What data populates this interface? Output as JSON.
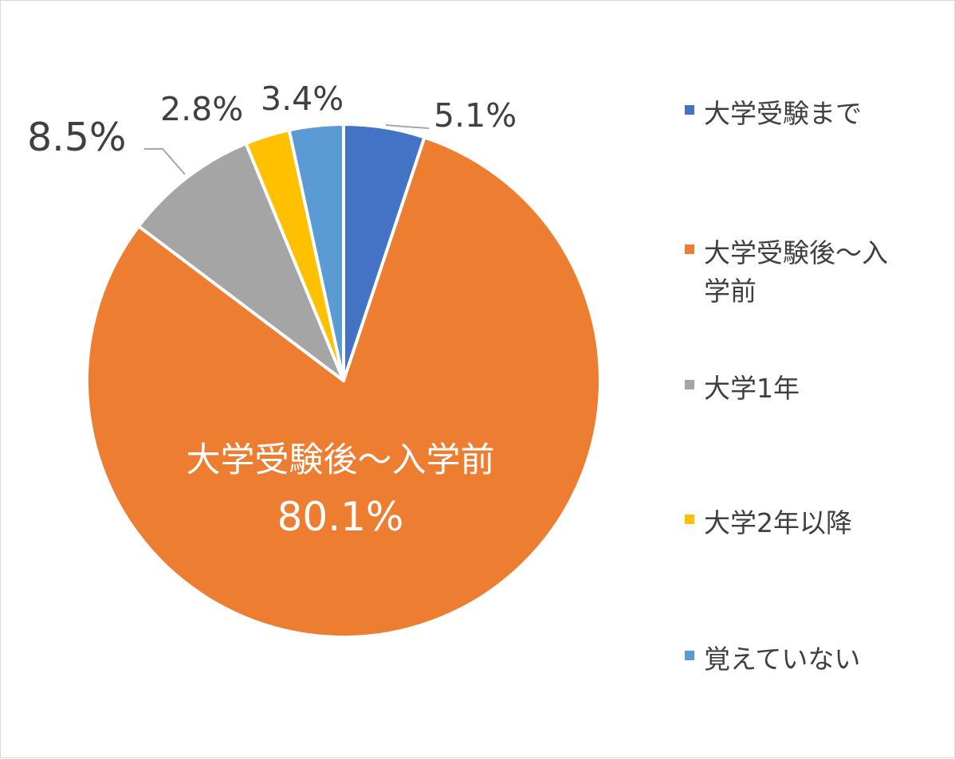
{
  "chart_data": {
    "type": "pie",
    "series": [
      {
        "slices": [
          {
            "label": "大学受験まで",
            "value": 5.1,
            "value_label": "5.1%",
            "color": "#4472C4"
          },
          {
            "label": "大学受験後～入学前",
            "value": 80.1,
            "value_label": "80.1%",
            "color": "#ED7D31"
          },
          {
            "label": "大学1年",
            "value": 8.5,
            "value_label": "8.5%",
            "color": "#A5A5A5"
          },
          {
            "label": "大学2年以降",
            "value": 2.8,
            "value_label": "2.8%",
            "color": "#FFC000"
          },
          {
            "label": "覚えていない",
            "value": 3.4,
            "value_label": "3.4%",
            "color": "#5B9BD5"
          }
        ]
      }
    ],
    "inner_label": {
      "category": "大学受験後～入学前",
      "value": "80.1%"
    },
    "legend": {
      "position": "right",
      "items": [
        {
          "label": "大学受験まで",
          "color": "#4472C4"
        },
        {
          "label": "大学受験後～入学前",
          "color": "#ED7D31"
        },
        {
          "label": "大学1年",
          "color": "#A5A5A5"
        },
        {
          "label": "大学2年以降",
          "color": "#FFC000"
        },
        {
          "label": "覚えていない",
          "color": "#5B9BD5"
        }
      ]
    },
    "colors": {
      "label_text": "#404040",
      "inner_label_text": "#FFFFFF",
      "leader_line": "#A6A6A6",
      "slice_border": "#FFFFFF"
    }
  }
}
